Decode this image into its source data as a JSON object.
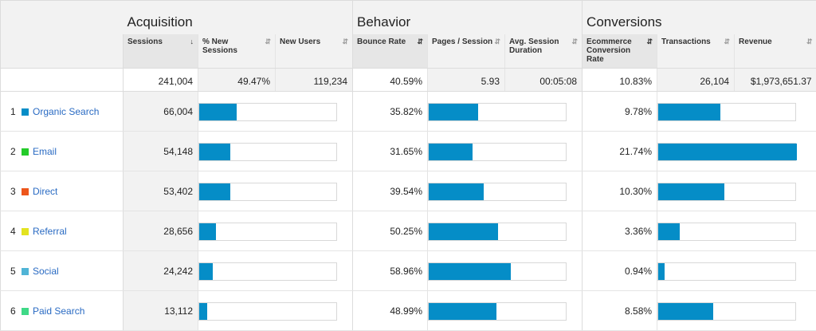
{
  "groups": {
    "acquisition": "Acquisition",
    "behavior": "Behavior",
    "conversions": "Conversions"
  },
  "columns": {
    "sessions": "Sessions",
    "new_sessions": "% New Sessions",
    "new_users": "New Users",
    "bounce_rate": "Bounce Rate",
    "pages_session": "Pages / Session",
    "avg_duration": "Avg. Session Duration",
    "conversion_rate": "Ecommerce Conversion Rate",
    "transactions": "Transactions",
    "revenue": "Revenue"
  },
  "sort_arrow": "↓",
  "totals": {
    "sessions": "241,004",
    "new_sessions": "49.47%",
    "new_users": "119,234",
    "bounce_rate": "40.59%",
    "pages_session": "5.93",
    "avg_duration": "00:05:08",
    "conversion_rate": "10.83%",
    "transactions": "26,104",
    "revenue": "$1,973,651.37"
  },
  "colors": {
    "bar": "#058dc7",
    "link": "#2a6bc3"
  },
  "rows": [
    {
      "index": "1",
      "channel": "Organic Search",
      "color": "#058dc7",
      "sessions": "66,004",
      "bounce_rate": "35.82%",
      "conversion_rate": "9.78%",
      "bar_acquisition": 0.27,
      "bar_behavior": 0.355,
      "bar_conversions": 0.45
    },
    {
      "index": "2",
      "channel": "Email",
      "color": "#24cb2a",
      "sessions": "54,148",
      "bounce_rate": "31.65%",
      "conversion_rate": "21.74%",
      "bar_acquisition": 0.225,
      "bar_behavior": 0.315,
      "bar_conversions": 1.0
    },
    {
      "index": "3",
      "channel": "Direct",
      "color": "#ed561b",
      "sessions": "53,402",
      "bounce_rate": "39.54%",
      "conversion_rate": "10.30%",
      "bar_acquisition": 0.225,
      "bar_behavior": 0.395,
      "bar_conversions": 0.475
    },
    {
      "index": "4",
      "channel": "Referral",
      "color": "#e3e320",
      "sessions": "28,656",
      "bounce_rate": "50.25%",
      "conversion_rate": "3.36%",
      "bar_acquisition": 0.12,
      "bar_behavior": 0.5,
      "bar_conversions": 0.155
    },
    {
      "index": "5",
      "channel": "Social",
      "color": "#50b4d6",
      "sessions": "24,242",
      "bounce_rate": "58.96%",
      "conversion_rate": "0.94%",
      "bar_acquisition": 0.1,
      "bar_behavior": 0.59,
      "bar_conversions": 0.045
    },
    {
      "index": "6",
      "channel": "Paid Search",
      "color": "#3fd987",
      "sessions": "13,112",
      "bounce_rate": "48.99%",
      "conversion_rate": "8.58%",
      "bar_acquisition": 0.055,
      "bar_behavior": 0.49,
      "bar_conversions": 0.395
    }
  ]
}
